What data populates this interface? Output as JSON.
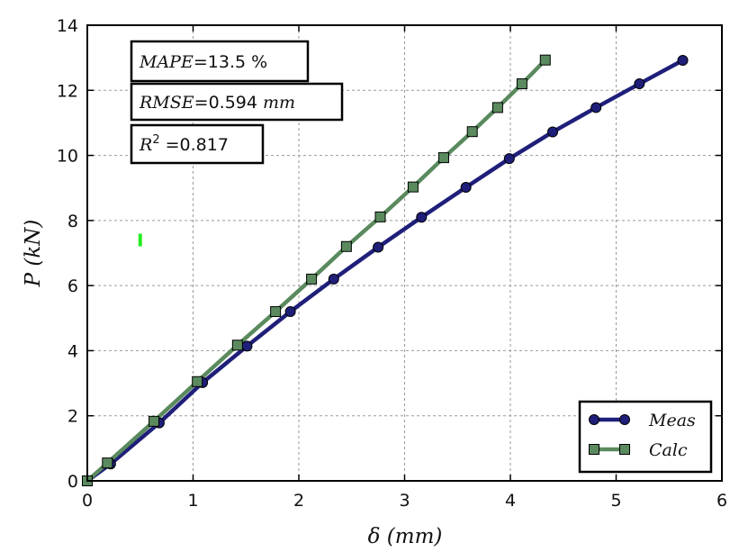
{
  "chart_data": {
    "type": "line",
    "xlabel_parts": [
      "δ (",
      "mm",
      ")"
    ],
    "ylabel_parts": [
      "P (",
      "kN",
      ")"
    ],
    "xlim": [
      0,
      6
    ],
    "ylim": [
      0,
      14
    ],
    "xticks": [
      0,
      1,
      2,
      3,
      4,
      5,
      6
    ],
    "yticks": [
      0,
      2,
      4,
      6,
      8,
      10,
      12,
      14
    ],
    "x_tick_labels": [
      "0",
      "1",
      "2",
      "3",
      "4",
      "5",
      "6"
    ],
    "y_tick_labels": [
      "0",
      "2",
      "4",
      "6",
      "8",
      "10",
      "12",
      "14"
    ],
    "grid": true,
    "legend_position": "lower-right",
    "series": [
      {
        "name": "Meas",
        "color": "#1f1f7a",
        "marker": "circle",
        "x": [
          0.0,
          0.22,
          0.68,
          1.09,
          1.51,
          1.92,
          2.33,
          2.75,
          3.16,
          3.58,
          3.99,
          4.4,
          4.81,
          5.22,
          5.63
        ],
        "y": [
          0.0,
          0.52,
          1.78,
          3.02,
          4.14,
          5.2,
          6.2,
          7.18,
          8.1,
          9.02,
          9.9,
          10.72,
          11.47,
          12.2,
          12.92
        ]
      },
      {
        "name": "Calc",
        "color": "#5a8a5e",
        "marker": "square",
        "x": [
          0.0,
          0.19,
          0.63,
          1.04,
          1.42,
          1.78,
          2.12,
          2.45,
          2.77,
          3.08,
          3.37,
          3.64,
          3.88,
          4.11,
          4.33
        ],
        "y": [
          0.0,
          0.55,
          1.83,
          3.05,
          4.17,
          5.2,
          6.2,
          7.2,
          8.11,
          9.03,
          9.93,
          10.73,
          11.47,
          12.2,
          12.93
        ]
      }
    ],
    "annotations": [
      {
        "label": "MAPE",
        "value": "=13.5 %",
        "unit": ""
      },
      {
        "label": "RMSE",
        "value": "=0.594 ",
        "unit": "mm"
      },
      {
        "label": "R",
        "sup": "2",
        "value": " =0.817",
        "unit": ""
      }
    ],
    "marker_note": {
      "x": 0.5,
      "y": 7.4,
      "color": "#22ee22"
    }
  }
}
